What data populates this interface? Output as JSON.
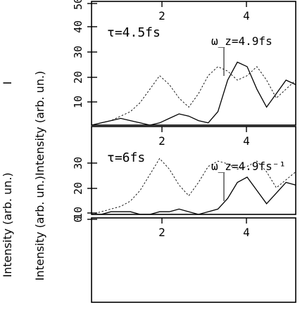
{
  "figure": {
    "ylabel_full": "Intensity (arb. un.)",
    "ylabel_crop_top": "I",
    "ylabel_middle": "Intensity (arb. un.)Intensity (arb. un.)"
  },
  "chart_data": [
    {
      "type": "line",
      "title": "",
      "xlabel": "",
      "ylabel": "Intensity (arb. un.)",
      "ylim": [
        0,
        55
      ],
      "yticks": [
        "10",
        "20",
        "30",
        "40",
        "50"
      ],
      "xticks": [
        "2",
        "4"
      ],
      "annotations": [
        "τ=4.5fs",
        "ω_z=4.9fs"
      ],
      "grid": false,
      "legend": "none",
      "series": [
        {
          "style": "solid",
          "x": [
            0.8,
            1.0,
            1.2,
            1.4,
            1.6,
            1.8,
            2.0,
            2.2,
            2.4,
            2.6,
            2.8,
            3.0,
            3.2,
            3.4,
            3.6,
            3.8,
            4.0,
            4.2,
            4.4,
            4.6,
            4.8,
            5.0
          ],
          "y": [
            0,
            1,
            2,
            3,
            2,
            1,
            0,
            1,
            3,
            5,
            4,
            2,
            1,
            6,
            20,
            28,
            26,
            16,
            8,
            14,
            20,
            18
          ]
        },
        {
          "style": "dashed",
          "x": [
            0.8,
            1.0,
            1.2,
            1.4,
            1.6,
            1.8,
            2.0,
            2.2,
            2.4,
            2.6,
            2.8,
            3.0,
            3.2,
            3.4,
            3.6,
            3.8,
            4.0,
            4.2,
            4.4,
            4.6,
            4.8,
            5.0
          ],
          "y": [
            0,
            1,
            2,
            4,
            6,
            10,
            16,
            22,
            18,
            12,
            8,
            14,
            22,
            26,
            24,
            20,
            22,
            26,
            20,
            12,
            16,
            20
          ]
        }
      ]
    },
    {
      "type": "line",
      "title": "",
      "xlabel": "",
      "ylabel": "Intensity (arb. un.)",
      "ylim": [
        0,
        33
      ],
      "yticks": [
        "10",
        "20",
        "30"
      ],
      "xticks": [
        "2",
        "4"
      ],
      "annotations": [
        "τ=6fs",
        "ω_z=4.9fs⁻¹"
      ],
      "grid": false,
      "legend": "none",
      "series": [
        {
          "style": "solid",
          "x": [
            0.8,
            1.0,
            1.2,
            1.4,
            1.6,
            1.8,
            2.0,
            2.2,
            2.4,
            2.6,
            2.8,
            3.0,
            3.2,
            3.4,
            3.6,
            3.8,
            4.0,
            4.2,
            4.4,
            4.6,
            4.8,
            5.0
          ],
          "y": [
            0,
            0,
            1,
            1,
            1,
            0,
            0,
            1,
            1,
            2,
            1,
            0,
            1,
            2,
            6,
            12,
            14,
            9,
            4,
            8,
            12,
            11
          ]
        },
        {
          "style": "dashed",
          "x": [
            0.8,
            1.0,
            1.2,
            1.4,
            1.6,
            1.8,
            2.0,
            2.2,
            2.4,
            2.6,
            2.8,
            3.0,
            3.2,
            3.4,
            3.6,
            3.8,
            4.0,
            4.2,
            4.4,
            4.6,
            4.8,
            5.0
          ],
          "y": [
            0,
            1,
            2,
            3,
            5,
            9,
            15,
            21,
            17,
            11,
            7,
            12,
            18,
            20,
            19,
            17,
            18,
            20,
            16,
            10,
            13,
            16
          ]
        }
      ]
    },
    {
      "type": "line",
      "title": "",
      "xlabel": "",
      "ylabel": "Intensity (arb. un.)",
      "ylim": [
        0,
        12
      ],
      "yticks": [
        "0"
      ],
      "xticks": [
        "2",
        "4"
      ],
      "annotations": [],
      "grid": false,
      "legend": "none",
      "series": []
    }
  ]
}
